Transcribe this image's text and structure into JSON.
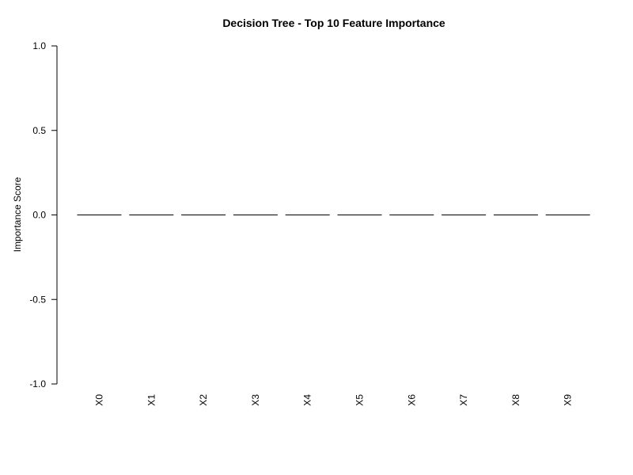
{
  "chart_data": {
    "type": "bar",
    "title": "Decision Tree - Top 10 Feature Importance",
    "xlabel": "",
    "ylabel": "Importance Score",
    "categories": [
      "X0",
      "X1",
      "X2",
      "X3",
      "X4",
      "X5",
      "X6",
      "X7",
      "X8",
      "X9"
    ],
    "values": [
      0,
      0,
      0,
      0,
      0,
      0,
      0,
      0,
      0,
      0
    ],
    "ylim": [
      -1.0,
      1.0
    ],
    "yticks": [
      -1.0,
      -0.5,
      0.0,
      0.5,
      1.0
    ],
    "ytick_labels": [
      "-1.0",
      "-0.5",
      "0.0",
      "0.5",
      "1.0"
    ],
    "x_tick_label_rotation": "vertical",
    "grid": false,
    "legend": "none",
    "bar_color": "#bebebe",
    "border_color": "#000000"
  }
}
